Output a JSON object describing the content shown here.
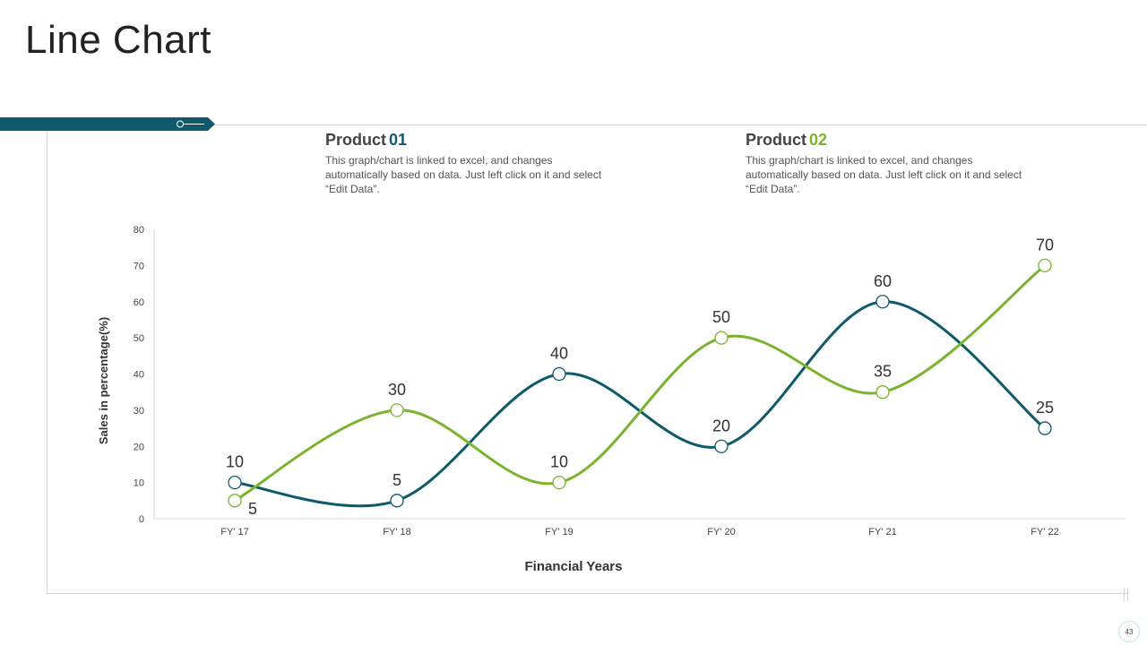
{
  "page": {
    "title": "Line Chart",
    "page_number": "43"
  },
  "legend": {
    "product1": {
      "label": "Product",
      "number": "01",
      "description": "This graph/chart is linked to excel, and changes automatically based on data. Just left click on it and select “Edit Data”."
    },
    "product2": {
      "label": "Product",
      "number": "02",
      "description": "This graph/chart is linked to excel, and changes automatically based on data. Just left click on it and select “Edit Data”."
    }
  },
  "colors": {
    "series1": "#0e5a6b",
    "series2": "#7ab32e",
    "axis": "#d9d9d9",
    "text": "#333333",
    "banner": "#0e5a6b"
  },
  "chart_data": {
    "type": "line",
    "smooth": true,
    "title": "",
    "xlabel": "Financial Years",
    "ylabel": "Sales in percentage(%)",
    "ylim": [
      0,
      80
    ],
    "yticks": [
      0,
      10,
      20,
      30,
      40,
      50,
      60,
      70,
      80
    ],
    "categories": [
      "FY' 17",
      "FY' 18",
      "FY' 19",
      "FY' 20",
      "FY' 21",
      "FY' 22"
    ],
    "series": [
      {
        "name": "Product 01",
        "values": [
          10,
          5,
          40,
          20,
          60,
          25
        ]
      },
      {
        "name": "Product 02",
        "values": [
          5,
          30,
          10,
          50,
          35,
          70
        ]
      }
    ],
    "legend": "top",
    "grid": false
  }
}
